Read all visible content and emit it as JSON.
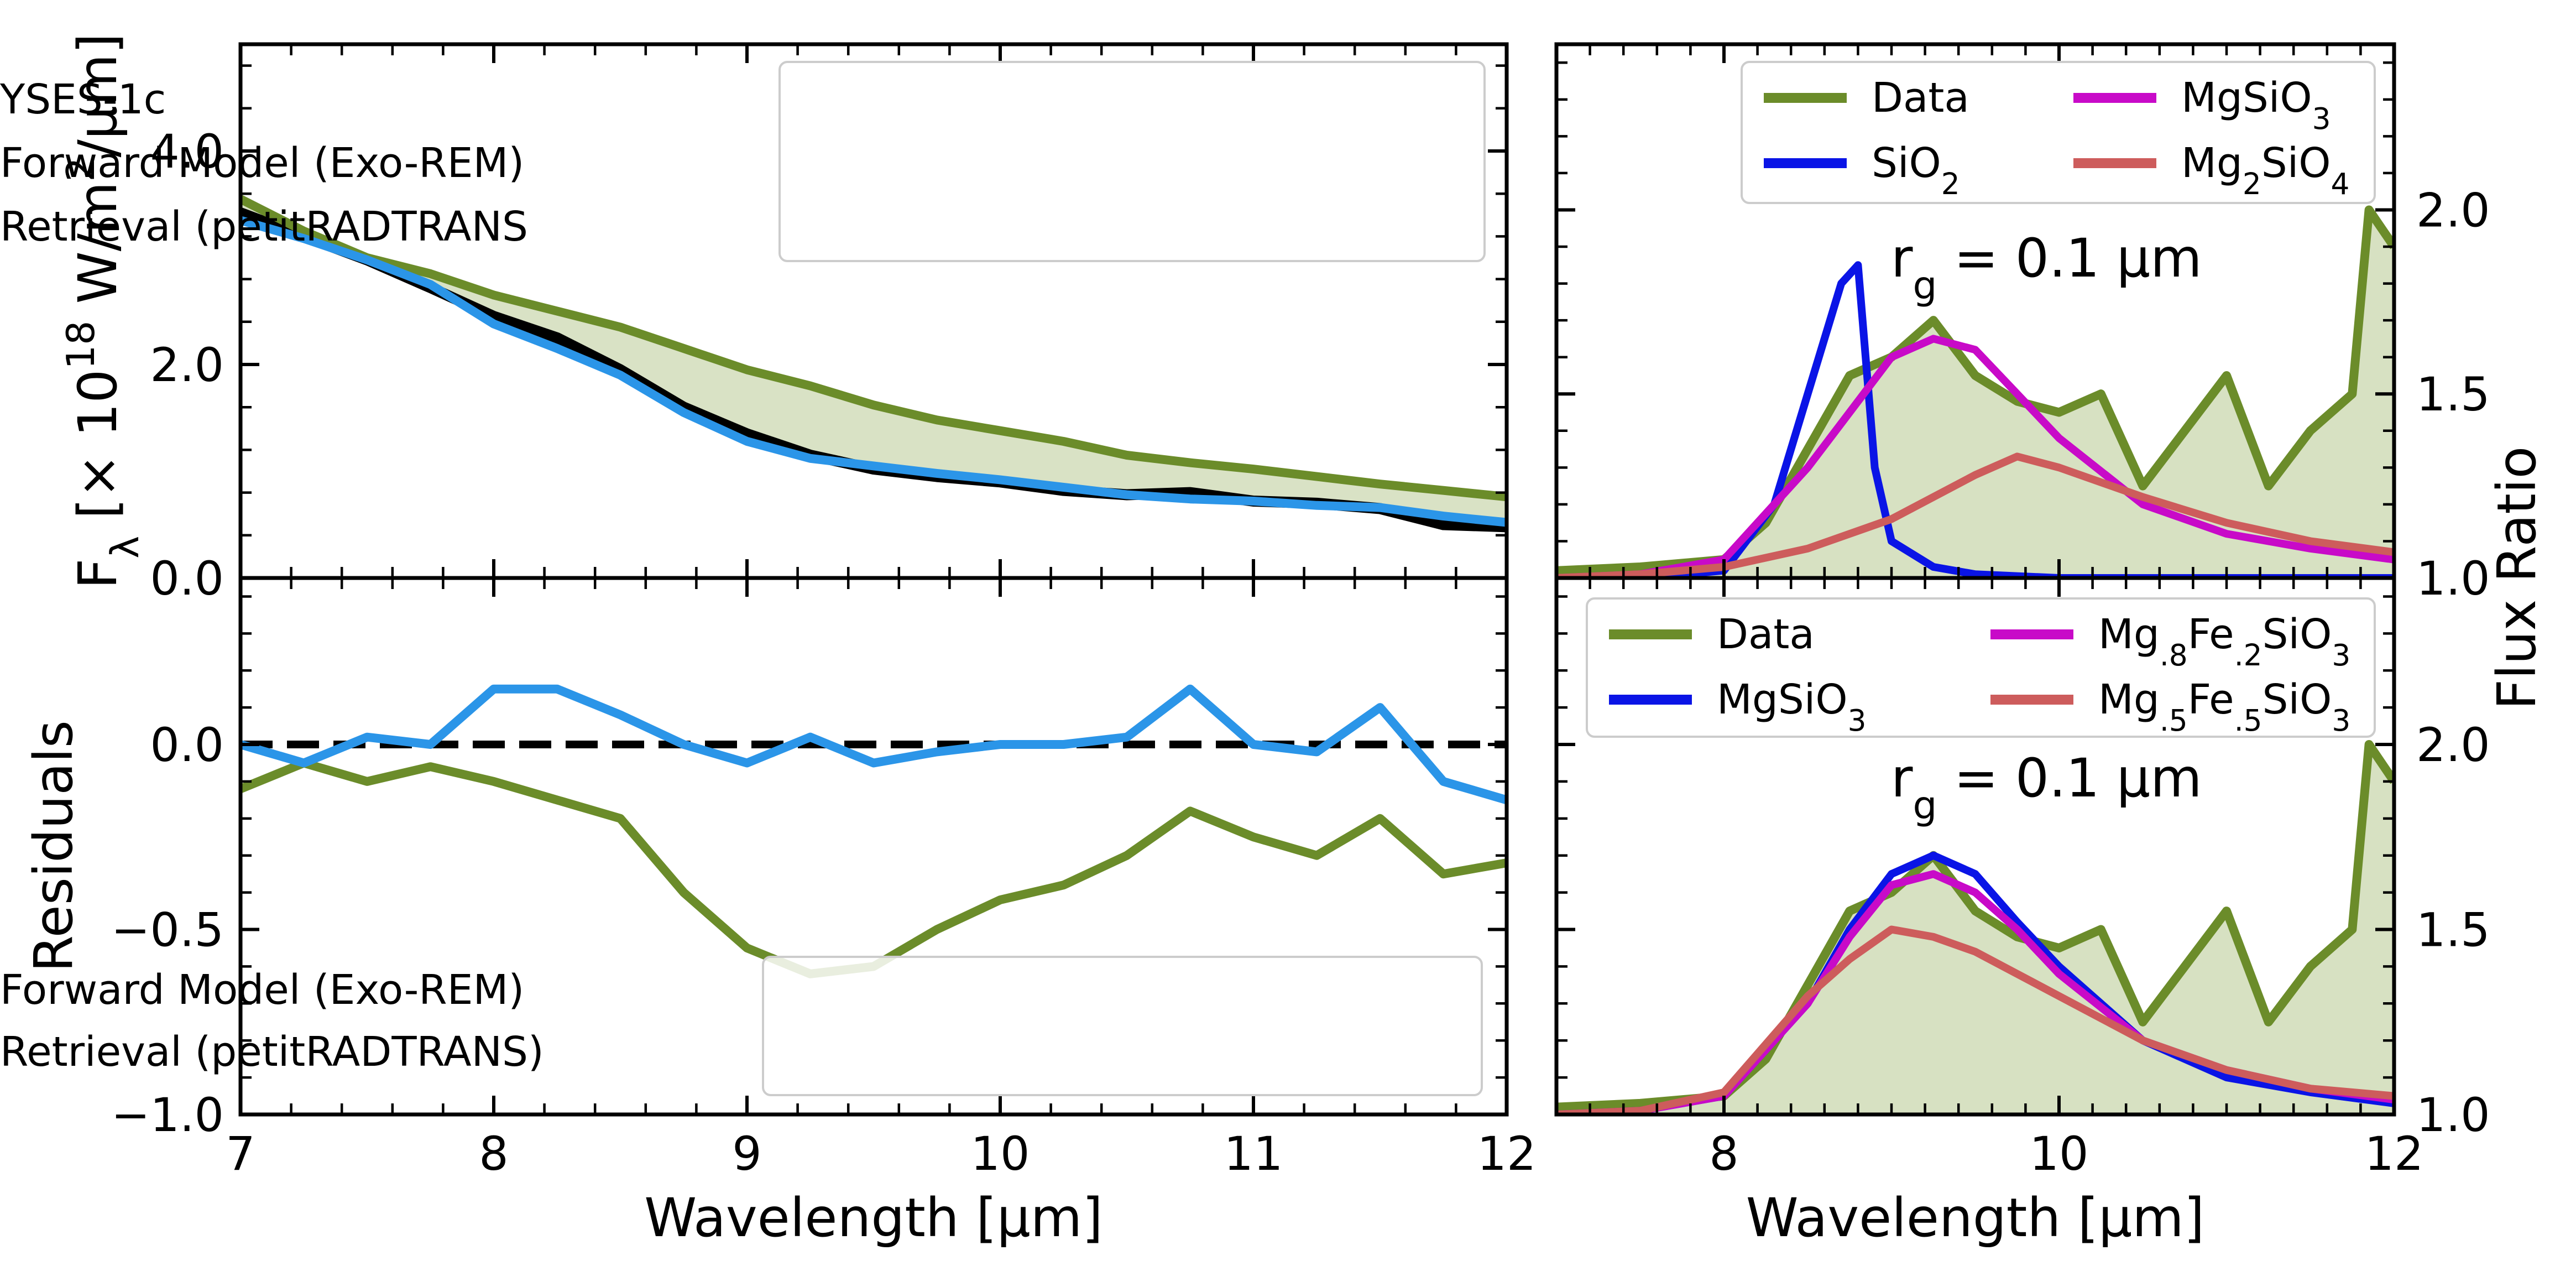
{
  "colors": {
    "data_green": "#6b8c2a",
    "retrieval_blue": "#2b95e8",
    "black": "#000000",
    "blue": "#0a14e6",
    "magenta": "#c80ac8",
    "salmon": "#cd5c5c",
    "fill_green": "#d5dfbf"
  },
  "chart_data": [
    {
      "id": "spectrum",
      "type": "line",
      "ylabel": "F$_\\lambda$ [× 10$^{18}$ W/m$^2$/μm]",
      "ylabel_parts": {
        "base": "F",
        "sub": "λ",
        "pre": " [× 10",
        "sup1": "18",
        "mid": " W/m",
        "sup2": "2",
        "post": "/μm]"
      },
      "xlim": [
        7,
        12
      ],
      "ylim": [
        0,
        5
      ],
      "yticks": [
        "0.0",
        "2.0",
        "4.0"
      ],
      "ytick_values": [
        0,
        2,
        4
      ],
      "legend": {
        "position": "top-right",
        "entries": [
          "YSES-1c",
          "Forward Model (Exo-REM)",
          "Retrieval (petitRADTRANS"
        ]
      },
      "shade_between": [
        "Forward Model (Exo-REM)",
        "YSES-1c"
      ],
      "series": [
        {
          "name": "YSES-1c",
          "color": "#000000",
          "x": [
            7.0,
            7.25,
            7.5,
            7.75,
            8.0,
            8.25,
            8.5,
            8.75,
            9.0,
            9.25,
            9.5,
            9.75,
            10.0,
            10.25,
            10.5,
            10.75,
            11.0,
            11.25,
            11.5,
            11.75,
            12.0
          ],
          "y": [
            3.42,
            3.2,
            2.98,
            2.72,
            2.45,
            2.25,
            1.95,
            1.6,
            1.35,
            1.15,
            1.02,
            0.95,
            0.9,
            0.82,
            0.78,
            0.8,
            0.72,
            0.7,
            0.65,
            0.5,
            0.48
          ]
        },
        {
          "name": "Forward Model (Exo-REM)",
          "color": "#6b8c2a",
          "x": [
            7.0,
            7.25,
            7.5,
            7.75,
            8.0,
            8.25,
            8.5,
            8.75,
            9.0,
            9.25,
            9.5,
            9.75,
            10.0,
            10.25,
            10.5,
            10.75,
            11.0,
            11.25,
            11.5,
            11.75,
            12.0
          ],
          "y": [
            3.55,
            3.25,
            3.0,
            2.85,
            2.65,
            2.5,
            2.35,
            2.15,
            1.95,
            1.8,
            1.62,
            1.48,
            1.38,
            1.28,
            1.15,
            1.08,
            1.02,
            0.95,
            0.88,
            0.82,
            0.76
          ]
        },
        {
          "name": "Retrieval (petitRADTRANS",
          "color": "#2b95e8",
          "x": [
            7.0,
            7.25,
            7.5,
            7.75,
            8.0,
            8.25,
            8.5,
            8.75,
            9.0,
            9.25,
            9.5,
            9.75,
            10.0,
            10.25,
            10.5,
            10.75,
            11.0,
            11.25,
            11.5,
            11.75,
            12.0
          ],
          "y": [
            3.35,
            3.18,
            2.98,
            2.75,
            2.38,
            2.15,
            1.9,
            1.55,
            1.28,
            1.12,
            1.05,
            0.98,
            0.92,
            0.85,
            0.78,
            0.74,
            0.72,
            0.68,
            0.66,
            0.58,
            0.52
          ]
        }
      ]
    },
    {
      "id": "residuals",
      "type": "line",
      "xlabel": "Wavelength [μm]",
      "ylabel": "Residuals",
      "xlim": [
        7,
        12
      ],
      "ylim": [
        -1.0,
        0.45
      ],
      "xticks": [
        "7",
        "8",
        "9",
        "10",
        "11",
        "12"
      ],
      "xtick_values": [
        7,
        8,
        9,
        10,
        11,
        12
      ],
      "yticks": [
        "−1.0",
        "−0.5",
        "0.0"
      ],
      "ytick_values": [
        -1.0,
        -0.5,
        0.0
      ],
      "reference_line": {
        "y": 0.0,
        "style": "dashed"
      },
      "legend": {
        "position": "bottom-right",
        "entries": [
          "Forward Model (Exo-REM)",
          "Retrieval (petitRADTRANS)"
        ]
      },
      "series": [
        {
          "name": "Forward Model (Exo-REM)",
          "color": "#6b8c2a",
          "x": [
            7.0,
            7.25,
            7.5,
            7.75,
            8.0,
            8.25,
            8.5,
            8.75,
            9.0,
            9.25,
            9.5,
            9.75,
            10.0,
            10.25,
            10.5,
            10.75,
            11.0,
            11.25,
            11.5,
            11.75,
            12.0
          ],
          "y": [
            -0.12,
            -0.05,
            -0.1,
            -0.06,
            -0.1,
            -0.15,
            -0.2,
            -0.4,
            -0.55,
            -0.62,
            -0.6,
            -0.5,
            -0.42,
            -0.38,
            -0.3,
            -0.18,
            -0.25,
            -0.3,
            -0.2,
            -0.35,
            -0.32
          ]
        },
        {
          "name": "Retrieval (petitRADTRANS)",
          "color": "#2b95e8",
          "x": [
            7.0,
            7.25,
            7.5,
            7.75,
            8.0,
            8.25,
            8.5,
            8.75,
            9.0,
            9.25,
            9.5,
            9.75,
            10.0,
            10.25,
            10.5,
            10.75,
            11.0,
            11.25,
            11.5,
            11.75,
            12.0
          ],
          "y": [
            0.0,
            -0.05,
            0.02,
            0.0,
            0.15,
            0.15,
            0.08,
            0.0,
            -0.05,
            0.02,
            -0.05,
            -0.02,
            0.0,
            0.0,
            0.02,
            0.15,
            0.0,
            -0.02,
            0.1,
            -0.1,
            -0.15
          ]
        }
      ]
    },
    {
      "id": "cond1",
      "type": "line",
      "annotation": {
        "base": "r",
        "sub": "g",
        "rest": " = 0.1 μm"
      },
      "xlim": [
        7,
        12
      ],
      "ylim": [
        1.0,
        2.45
      ],
      "yaxis_side": "right",
      "yticks": [
        "1.0",
        "1.5",
        "2.0"
      ],
      "ytick_values": [
        1.0,
        1.5,
        2.0
      ],
      "legend": {
        "position": "top",
        "columns": 2,
        "entries": [
          "Data",
          "SiO2",
          "MgSiO3",
          "Mg2SiO4"
        ]
      },
      "series": [
        {
          "name": "Data",
          "color": "#6b8c2a",
          "filled": true,
          "x": [
            7.0,
            7.5,
            8.0,
            8.25,
            8.5,
            8.75,
            9.0,
            9.25,
            9.5,
            9.75,
            10.0,
            10.25,
            10.5,
            10.75,
            11.0,
            11.25,
            11.5,
            11.75,
            11.85,
            12.0
          ],
          "y": [
            1.02,
            1.03,
            1.05,
            1.15,
            1.35,
            1.55,
            1.6,
            1.7,
            1.55,
            1.48,
            1.45,
            1.5,
            1.25,
            1.4,
            1.55,
            1.25,
            1.4,
            1.5,
            2.0,
            1.9
          ]
        },
        {
          "name": "SiO$_2$",
          "label": {
            "base": "SiO",
            "sub": "2"
          },
          "color": "#0a14e6",
          "x": [
            7.0,
            7.5,
            8.0,
            8.3,
            8.5,
            8.7,
            8.8,
            8.9,
            9.0,
            9.25,
            9.5,
            10.0,
            11.0,
            12.0
          ],
          "y": [
            1.0,
            1.0,
            1.02,
            1.2,
            1.5,
            1.8,
            1.85,
            1.3,
            1.1,
            1.03,
            1.01,
            1.0,
            1.0,
            1.0
          ]
        },
        {
          "name": "MgSiO$_3$",
          "label": {
            "base": "MgSiO",
            "sub": "3"
          },
          "color": "#c80ac8",
          "x": [
            7.0,
            7.5,
            8.0,
            8.5,
            8.75,
            9.0,
            9.25,
            9.5,
            9.75,
            10.0,
            10.5,
            11.0,
            11.5,
            12.0
          ],
          "y": [
            1.0,
            1.01,
            1.05,
            1.3,
            1.45,
            1.6,
            1.65,
            1.62,
            1.5,
            1.38,
            1.2,
            1.12,
            1.08,
            1.05
          ]
        },
        {
          "name": "Mg$_2$SiO$_4$",
          "label": {
            "base": "Mg",
            "sub": "2",
            "mid": "SiO",
            "sub2": "4"
          },
          "color": "#cd5c5c",
          "x": [
            7.0,
            7.5,
            8.0,
            8.5,
            9.0,
            9.5,
            9.75,
            10.0,
            10.5,
            11.0,
            11.5,
            12.0
          ],
          "y": [
            1.0,
            1.01,
            1.03,
            1.08,
            1.16,
            1.28,
            1.33,
            1.3,
            1.22,
            1.15,
            1.1,
            1.07
          ]
        }
      ]
    },
    {
      "id": "cond2",
      "type": "line",
      "annotation": {
        "base": "r",
        "sub": "g",
        "rest": " = 0.1 μm"
      },
      "xlabel": "Wavelength [μm]",
      "ylabel": "Flux Ratio",
      "xlim": [
        7,
        12
      ],
      "ylim": [
        1.0,
        2.45
      ],
      "yaxis_side": "right",
      "xticks": [
        "8",
        "10",
        "12"
      ],
      "xtick_values": [
        8,
        10,
        12
      ],
      "yticks": [
        "1.0",
        "1.5",
        "2.0"
      ],
      "ytick_values": [
        1.0,
        1.5,
        2.0
      ],
      "legend": {
        "position": "top",
        "columns": 2,
        "entries": [
          "Data",
          "MgSiO3",
          "Mg.8Fe.2SiO3",
          "Mg.5Fe.5SiO3"
        ]
      },
      "series": [
        {
          "name": "Data",
          "color": "#6b8c2a",
          "filled": true,
          "x": [
            7.0,
            7.5,
            8.0,
            8.25,
            8.5,
            8.75,
            9.0,
            9.25,
            9.5,
            9.75,
            10.0,
            10.25,
            10.5,
            10.75,
            11.0,
            11.25,
            11.5,
            11.75,
            11.85,
            12.0
          ],
          "y": [
            1.02,
            1.03,
            1.05,
            1.15,
            1.35,
            1.55,
            1.6,
            1.7,
            1.55,
            1.48,
            1.45,
            1.5,
            1.25,
            1.4,
            1.55,
            1.25,
            1.4,
            1.5,
            2.0,
            1.9
          ]
        },
        {
          "name": "MgSiO$_3$",
          "label": {
            "base": "MgSiO",
            "sub": "3"
          },
          "color": "#0a14e6",
          "x": [
            7.0,
            7.5,
            8.0,
            8.5,
            8.75,
            9.0,
            9.25,
            9.5,
            9.75,
            10.0,
            10.5,
            11.0,
            11.5,
            12.0
          ],
          "y": [
            1.0,
            1.01,
            1.05,
            1.3,
            1.5,
            1.65,
            1.7,
            1.65,
            1.52,
            1.4,
            1.2,
            1.1,
            1.06,
            1.03
          ]
        },
        {
          "name": "Mg$_{.8}$Fe$_{.2}$SiO$_3$",
          "label": {
            "base": "Mg",
            "sub": ".8",
            "mid": "Fe",
            "sub2": ".2",
            "mid2": "SiO",
            "sub3": "3"
          },
          "color": "#c80ac8",
          "x": [
            7.0,
            7.5,
            8.0,
            8.5,
            8.75,
            9.0,
            9.25,
            9.5,
            9.75,
            10.0,
            10.5,
            11.0,
            11.5,
            12.0
          ],
          "y": [
            1.0,
            1.01,
            1.05,
            1.3,
            1.48,
            1.62,
            1.65,
            1.6,
            1.5,
            1.38,
            1.2,
            1.12,
            1.07,
            1.04
          ]
        },
        {
          "name": "Mg$_{.5}$Fe$_{.5}$SiO$_3$",
          "label": {
            "base": "Mg",
            "sub": ".5",
            "mid": "Fe",
            "sub2": ".5",
            "mid2": "SiO",
            "sub3": "3"
          },
          "color": "#cd5c5c",
          "x": [
            7.0,
            7.5,
            8.0,
            8.5,
            8.75,
            9.0,
            9.25,
            9.5,
            9.75,
            10.0,
            10.5,
            11.0,
            11.5,
            12.0
          ],
          "y": [
            1.0,
            1.01,
            1.06,
            1.32,
            1.42,
            1.5,
            1.48,
            1.44,
            1.38,
            1.32,
            1.2,
            1.12,
            1.07,
            1.05
          ]
        }
      ]
    }
  ]
}
